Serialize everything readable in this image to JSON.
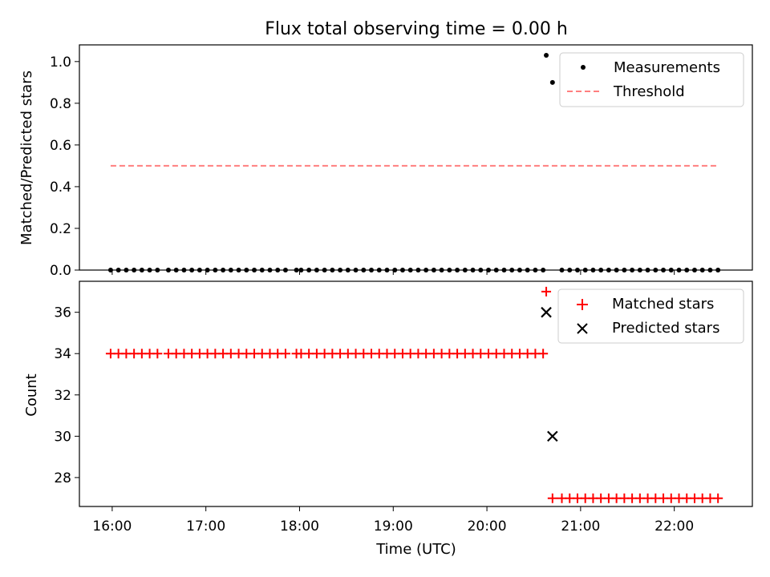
{
  "chart_data": [
    {
      "type": "scatter",
      "title": "Flux total observing time = 0.00 h",
      "xlabel": "",
      "ylabel": "Matched/Predicted stars",
      "xlim": [
        "15:39",
        "22:50"
      ],
      "ylim": [
        0.0,
        1.08
      ],
      "yticks": [
        0.0,
        0.2,
        0.4,
        0.6,
        0.8,
        1.0
      ],
      "ytick_labels": [
        "0.0",
        "0.2",
        "0.4",
        "0.6",
        "0.8",
        "1.0"
      ],
      "legend_position": "upper-right",
      "series": [
        {
          "name": "Measurements",
          "marker": "dot",
          "color": "#000000",
          "points": [
            [
              "15:59",
              0.0
            ],
            [
              "16:04",
              0.0
            ],
            [
              "16:09",
              0.0
            ],
            [
              "16:14",
              0.0
            ],
            [
              "16:19",
              0.0
            ],
            [
              "16:24",
              0.0
            ],
            [
              "16:29",
              0.0
            ],
            [
              "16:36",
              0.0
            ],
            [
              "16:41",
              0.0
            ],
            [
              "16:46",
              0.0
            ],
            [
              "16:51",
              0.0
            ],
            [
              "16:56",
              0.0
            ],
            [
              "17:01",
              0.0
            ],
            [
              "17:06",
              0.0
            ],
            [
              "17:11",
              0.0
            ],
            [
              "17:16",
              0.0
            ],
            [
              "17:21",
              0.0
            ],
            [
              "17:26",
              0.0
            ],
            [
              "17:31",
              0.0
            ],
            [
              "17:36",
              0.0
            ],
            [
              "17:41",
              0.0
            ],
            [
              "17:46",
              0.0
            ],
            [
              "17:51",
              0.0
            ],
            [
              "17:58",
              0.0
            ],
            [
              "18:01",
              0.0
            ],
            [
              "18:06",
              0.0
            ],
            [
              "18:11",
              0.0
            ],
            [
              "18:16",
              0.0
            ],
            [
              "18:21",
              0.0
            ],
            [
              "18:26",
              0.0
            ],
            [
              "18:31",
              0.0
            ],
            [
              "18:36",
              0.0
            ],
            [
              "18:41",
              0.0
            ],
            [
              "18:46",
              0.0
            ],
            [
              "18:51",
              0.0
            ],
            [
              "18:56",
              0.0
            ],
            [
              "19:01",
              0.0
            ],
            [
              "19:06",
              0.0
            ],
            [
              "19:11",
              0.0
            ],
            [
              "19:16",
              0.0
            ],
            [
              "19:21",
              0.0
            ],
            [
              "19:26",
              0.0
            ],
            [
              "19:31",
              0.0
            ],
            [
              "19:36",
              0.0
            ],
            [
              "19:41",
              0.0
            ],
            [
              "19:46",
              0.0
            ],
            [
              "19:51",
              0.0
            ],
            [
              "19:56",
              0.0
            ],
            [
              "20:01",
              0.0
            ],
            [
              "20:06",
              0.0
            ],
            [
              "20:11",
              0.0
            ],
            [
              "20:16",
              0.0
            ],
            [
              "20:21",
              0.0
            ],
            [
              "20:26",
              0.0
            ],
            [
              "20:31",
              0.0
            ],
            [
              "20:36",
              0.0
            ],
            [
              "20:38",
              1.03
            ],
            [
              "20:42",
              0.9
            ],
            [
              "20:48",
              0.0
            ],
            [
              "20:53",
              0.0
            ],
            [
              "20:58",
              0.0
            ],
            [
              "21:03",
              0.0
            ],
            [
              "21:08",
              0.0
            ],
            [
              "21:13",
              0.0
            ],
            [
              "21:18",
              0.0
            ],
            [
              "21:23",
              0.0
            ],
            [
              "21:28",
              0.0
            ],
            [
              "21:33",
              0.0
            ],
            [
              "21:38",
              0.0
            ],
            [
              "21:43",
              0.0
            ],
            [
              "21:48",
              0.0
            ],
            [
              "21:53",
              0.0
            ],
            [
              "21:58",
              0.0
            ],
            [
              "22:03",
              0.0
            ],
            [
              "22:08",
              0.0
            ],
            [
              "22:13",
              0.0
            ],
            [
              "22:18",
              0.0
            ],
            [
              "22:23",
              0.0
            ],
            [
              "22:28",
              0.0
            ]
          ]
        },
        {
          "name": "Threshold",
          "marker": "dashed-line",
          "color": "#ff7f7f",
          "points": [
            [
              "15:59",
              0.5
            ],
            [
              "22:28",
              0.5
            ]
          ]
        }
      ]
    },
    {
      "type": "scatter",
      "title": "",
      "xlabel": "Time (UTC)",
      "ylabel": "Count",
      "xlim": [
        "15:39",
        "22:50"
      ],
      "ylim": [
        26.6,
        37.5
      ],
      "xticks": [
        "16:00",
        "17:00",
        "18:00",
        "19:00",
        "20:00",
        "21:00",
        "22:00"
      ],
      "yticks": [
        28,
        30,
        32,
        34,
        36
      ],
      "ytick_labels": [
        "28",
        "30",
        "32",
        "34",
        "36"
      ],
      "legend_position": "upper-right",
      "series": [
        {
          "name": "Matched stars",
          "marker": "plus",
          "color": "#ff0000",
          "points": [
            [
              "15:59",
              34
            ],
            [
              "16:04",
              34
            ],
            [
              "16:09",
              34
            ],
            [
              "16:14",
              34
            ],
            [
              "16:19",
              34
            ],
            [
              "16:24",
              34
            ],
            [
              "16:29",
              34
            ],
            [
              "16:36",
              34
            ],
            [
              "16:41",
              34
            ],
            [
              "16:46",
              34
            ],
            [
              "16:51",
              34
            ],
            [
              "16:56",
              34
            ],
            [
              "17:01",
              34
            ],
            [
              "17:06",
              34
            ],
            [
              "17:11",
              34
            ],
            [
              "17:16",
              34
            ],
            [
              "17:21",
              34
            ],
            [
              "17:26",
              34
            ],
            [
              "17:31",
              34
            ],
            [
              "17:36",
              34
            ],
            [
              "17:41",
              34
            ],
            [
              "17:46",
              34
            ],
            [
              "17:51",
              34
            ],
            [
              "17:58",
              34
            ],
            [
              "18:01",
              34
            ],
            [
              "18:06",
              34
            ],
            [
              "18:11",
              34
            ],
            [
              "18:16",
              34
            ],
            [
              "18:21",
              34
            ],
            [
              "18:26",
              34
            ],
            [
              "18:31",
              34
            ],
            [
              "18:36",
              34
            ],
            [
              "18:41",
              34
            ],
            [
              "18:46",
              34
            ],
            [
              "18:51",
              34
            ],
            [
              "18:56",
              34
            ],
            [
              "19:01",
              34
            ],
            [
              "19:06",
              34
            ],
            [
              "19:11",
              34
            ],
            [
              "19:16",
              34
            ],
            [
              "19:21",
              34
            ],
            [
              "19:26",
              34
            ],
            [
              "19:31",
              34
            ],
            [
              "19:36",
              34
            ],
            [
              "19:41",
              34
            ],
            [
              "19:46",
              34
            ],
            [
              "19:51",
              34
            ],
            [
              "19:56",
              34
            ],
            [
              "20:01",
              34
            ],
            [
              "20:06",
              34
            ],
            [
              "20:11",
              34
            ],
            [
              "20:16",
              34
            ],
            [
              "20:21",
              34
            ],
            [
              "20:26",
              34
            ],
            [
              "20:31",
              34
            ],
            [
              "20:36",
              34
            ],
            [
              "20:38",
              37
            ],
            [
              "20:42",
              27
            ],
            [
              "20:48",
              27
            ],
            [
              "20:53",
              27
            ],
            [
              "20:58",
              27
            ],
            [
              "21:03",
              27
            ],
            [
              "21:08",
              27
            ],
            [
              "21:13",
              27
            ],
            [
              "21:18",
              27
            ],
            [
              "21:23",
              27
            ],
            [
              "21:28",
              27
            ],
            [
              "21:33",
              27
            ],
            [
              "21:38",
              27
            ],
            [
              "21:43",
              27
            ],
            [
              "21:48",
              27
            ],
            [
              "21:53",
              27
            ],
            [
              "21:58",
              27
            ],
            [
              "22:03",
              27
            ],
            [
              "22:08",
              27
            ],
            [
              "22:13",
              27
            ],
            [
              "22:18",
              27
            ],
            [
              "22:23",
              27
            ],
            [
              "22:28",
              27
            ]
          ]
        },
        {
          "name": "Predicted stars",
          "marker": "x",
          "color": "#000000",
          "points": [
            [
              "20:38",
              36
            ],
            [
              "20:42",
              30
            ]
          ]
        }
      ]
    }
  ]
}
